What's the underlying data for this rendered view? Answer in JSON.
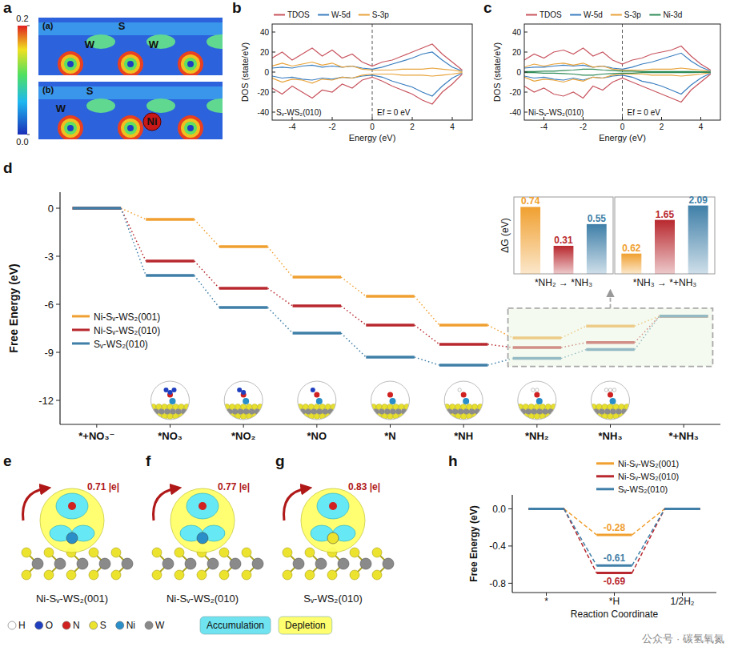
{
  "panel_labels": [
    "a",
    "b",
    "c",
    "d",
    "e",
    "f",
    "g",
    "h"
  ],
  "charge_maps": {
    "colorbar": {
      "range": [
        0,
        0.2
      ],
      "ticks": [
        0.2,
        {
          "value": 0,
          "label": "0.0"
        }
      ]
    },
    "maps": [
      {
        "tag": "(a)",
        "labels": [
          "S",
          "W",
          "W"
        ]
      },
      {
        "tag": "(b)",
        "labels": [
          "S",
          "W",
          "Ni"
        ]
      }
    ]
  },
  "chart_data": [
    {
      "type": "line",
      "x": [
        -5,
        -4.5,
        -4,
        -3.5,
        -3,
        -2.5,
        -2,
        -1.5,
        -1,
        -0.5,
        0,
        0.5,
        1,
        1.5,
        2,
        2.5,
        3,
        3.5,
        4,
        4.5
      ],
      "xlim": [
        -5,
        5
      ],
      "xticks": [
        -4,
        -2,
        0,
        2,
        4
      ],
      "ylim": [
        -48,
        48
      ],
      "yticks": [
        -40,
        -20,
        0,
        20,
        40
      ],
      "x_label": "Energy (eV)",
      "y_label": "DOS (state/eV)",
      "fermi_level": 0,
      "legend": "top",
      "annotations": [
        "Sᵥ-WS₂(010)",
        "Ef = 0 eV"
      ],
      "series": [
        {
          "name": "TDOS",
          "color": "#c8555f",
          "values": [
            14,
            20,
            12,
            18,
            24,
            16,
            22,
            14,
            18,
            10,
            6,
            10,
            12,
            16,
            20,
            24,
            28,
            18,
            10,
            2
          ],
          "spin_down": [
            -16,
            -22,
            -14,
            -20,
            -26,
            -18,
            -20,
            -12,
            -16,
            -8,
            -5,
            -9,
            -14,
            -18,
            -22,
            -28,
            -32,
            -20,
            -12,
            -2
          ]
        },
        {
          "name": "W-5d",
          "color": "#3a7ebf",
          "values": [
            4,
            5,
            4,
            6,
            7,
            5,
            6,
            5,
            6,
            4,
            3,
            5,
            8,
            11,
            14,
            18,
            20,
            12,
            5,
            1
          ],
          "spin_down": [
            -4,
            -6,
            -5,
            -7,
            -8,
            -6,
            -7,
            -5,
            -6,
            -4,
            -3,
            -5,
            -9,
            -12,
            -15,
            -20,
            -24,
            -14,
            -6,
            -1
          ]
        },
        {
          "name": "S-3p",
          "color": "#e8a33a",
          "values": [
            6,
            9,
            6,
            8,
            10,
            7,
            9,
            5,
            6,
            3,
            2,
            2,
            2,
            3,
            3,
            3,
            4,
            3,
            2,
            0.5
          ],
          "spin_down": [
            -6,
            -10,
            -7,
            -8,
            -11,
            -7,
            -8,
            -5,
            -6,
            -3,
            -2,
            -2,
            -2,
            -3,
            -3,
            -3,
            -4,
            -3,
            -2,
            -0.5
          ]
        }
      ]
    },
    {
      "type": "line",
      "x": [
        -5,
        -4.5,
        -4,
        -3.5,
        -3,
        -2.5,
        -2,
        -1.5,
        -1,
        -0.5,
        0,
        0.5,
        1,
        1.5,
        2,
        2.5,
        3,
        3.5,
        4,
        4.5
      ],
      "xlim": [
        -5,
        5
      ],
      "xticks": [
        -4,
        -2,
        0,
        2,
        4
      ],
      "ylim": [
        -48,
        48
      ],
      "yticks": [
        -40,
        -20,
        0,
        20,
        40
      ],
      "x_label": "Energy (eV)",
      "y_label": "DOS (state/eV)",
      "fermi_level": 0,
      "legend": "top",
      "annotations": [
        "Ni-Sᵥ-WS₂(010)",
        "Ef = 0 eV"
      ],
      "series": [
        {
          "name": "TDOS",
          "color": "#c8555f",
          "values": [
            12,
            18,
            14,
            20,
            22,
            18,
            24,
            16,
            20,
            12,
            8,
            12,
            14,
            18,
            20,
            22,
            26,
            16,
            8,
            2
          ],
          "spin_down": [
            -14,
            -20,
            -16,
            -22,
            -24,
            -20,
            -26,
            -14,
            -18,
            -10,
            -6,
            -10,
            -14,
            -18,
            -22,
            -26,
            -30,
            -18,
            -10,
            -2
          ]
        },
        {
          "name": "W-5d",
          "color": "#3a7ebf",
          "values": [
            4,
            5,
            5,
            6,
            7,
            6,
            7,
            5,
            6,
            4,
            3,
            5,
            8,
            10,
            13,
            16,
            19,
            11,
            5,
            1
          ],
          "spin_down": [
            -4,
            -6,
            -5,
            -7,
            -8,
            -6,
            -8,
            -5,
            -6,
            -4,
            -3,
            -5,
            -9,
            -11,
            -14,
            -18,
            -22,
            -13,
            -6,
            -1
          ]
        },
        {
          "name": "S-3p",
          "color": "#e8a33a",
          "values": [
            5,
            8,
            6,
            8,
            9,
            7,
            9,
            5,
            6,
            3,
            2,
            2,
            2,
            3,
            3,
            3,
            4,
            3,
            2,
            0.5
          ],
          "spin_down": [
            -5,
            -9,
            -7,
            -8,
            -10,
            -7,
            -9,
            -5,
            -6,
            -3,
            -2,
            -2,
            -2,
            -3,
            -3,
            -3,
            -4,
            -3,
            -2,
            -0.5
          ]
        },
        {
          "name": "Ni-3d",
          "color": "#2e8b57",
          "values": [
            0.5,
            0.5,
            1,
            1,
            1.5,
            2,
            3,
            3,
            2,
            1.5,
            1,
            1,
            0.5,
            0.5,
            0.5,
            0.5,
            0.5,
            0.5,
            0.3,
            0.2
          ],
          "spin_down": [
            -0.5,
            -0.5,
            -1,
            -1,
            -1.5,
            -2,
            -3,
            -3,
            -2,
            -1.5,
            -1,
            -1,
            -0.5,
            -0.5,
            -0.5,
            -0.5,
            -0.5,
            -0.5,
            -0.3,
            -0.2
          ]
        }
      ]
    },
    {
      "type": "step",
      "categories": [
        "*+NO₃⁻",
        "*NO₃",
        "*NO₂",
        "*NO",
        "*N",
        "*NH",
        "*NH₂",
        "*NH₃",
        "*+NH₃"
      ],
      "ylim": [
        -13.5,
        1
      ],
      "yticks": [
        0,
        -3,
        -6,
        -9,
        -12
      ],
      "y_label": "Free Energy (eV)",
      "legend": "left",
      "line_style": "dotted",
      "series": [
        {
          "name": "Ni-Sᵥ-WS₂(001)",
          "color": "#f0a030",
          "values": [
            0,
            -0.7,
            -2.4,
            -4.3,
            -5.5,
            -7.3,
            -8.1,
            -7.36,
            -6.74
          ]
        },
        {
          "name": "Ni-Sᵥ-WS₂(010)",
          "color": "#b8282e",
          "values": [
            0,
            -3.3,
            -5.0,
            -6.1,
            -7.3,
            -8.5,
            -8.7,
            -8.39,
            -6.74
          ]
        },
        {
          "name": "Sᵥ-WS₂(010)",
          "color": "#3f7fa8",
          "values": [
            0,
            -4.2,
            -6.2,
            -7.8,
            -9.3,
            -9.8,
            -9.38,
            -8.83,
            -6.74
          ]
        }
      ]
    },
    {
      "type": "bar",
      "y_label": "ΔG (eV)",
      "x_label": "*NH₂ → *NH₃",
      "values": [
        0.74,
        0.31,
        0.55
      ],
      "colors": [
        "#f0a030",
        "#b8282e",
        "#3f7fa8"
      ],
      "ylim": [
        0,
        0.85
      ],
      "data_labels": true,
      "tick_labels": false
    },
    {
      "type": "bar",
      "x_label": "*NH₃ → *+NH₃",
      "values": [
        0.62,
        1.65,
        2.09
      ],
      "colors": [
        "#f0a030",
        "#b8282e",
        "#3f7fa8"
      ],
      "ylim": [
        0,
        2.35
      ],
      "data_labels": true,
      "tick_labels": false
    },
    {
      "type": "step",
      "categories": [
        "*",
        "*H",
        "1/2H₂"
      ],
      "ylim": [
        -0.9,
        0.15
      ],
      "yticks": [
        {
          "value": 0,
          "label": "0.0"
        },
        -0.4,
        -0.8
      ],
      "x_label": "Reaction Coordinate",
      "y_label": "Free Energy (eV)",
      "legend": "top",
      "line_style": "dashed",
      "data_labels": true,
      "series": [
        {
          "name": "Ni-Sᵥ-WS₂(001)",
          "color": "#f0a030",
          "values": [
            0,
            -0.28,
            0
          ],
          "value_labels": [
            null,
            "-0.28",
            null
          ]
        },
        {
          "name": "Ni-Sᵥ-WS₂(010)",
          "color": "#b8282e",
          "values": [
            0,
            -0.69,
            0
          ],
          "value_labels": [
            null,
            "-0.69",
            null
          ]
        },
        {
          "name": "Sᵥ-WS₂(010)",
          "color": "#3f7fa8",
          "values": [
            0,
            -0.61,
            0
          ],
          "value_labels": [
            null,
            "-0.61",
            null
          ]
        }
      ]
    }
  ],
  "charge_transfer": [
    {
      "label": "0.71 |e|",
      "caption": "Ni-Sᵥ-WS₂(001)"
    },
    {
      "label": "0.77 |e|",
      "caption": "Ni-Sᵥ-WS₂(010)"
    },
    {
      "label": "0.83 |e|",
      "caption": "Sᵥ-WS₂(010)"
    }
  ],
  "atom_legend": [
    "H",
    "O",
    "N",
    "S",
    "Ni",
    "W"
  ],
  "density_legend": [
    "Accumulation",
    "Depletion"
  ],
  "watermark": "公众号 · 碳氢氧氮"
}
